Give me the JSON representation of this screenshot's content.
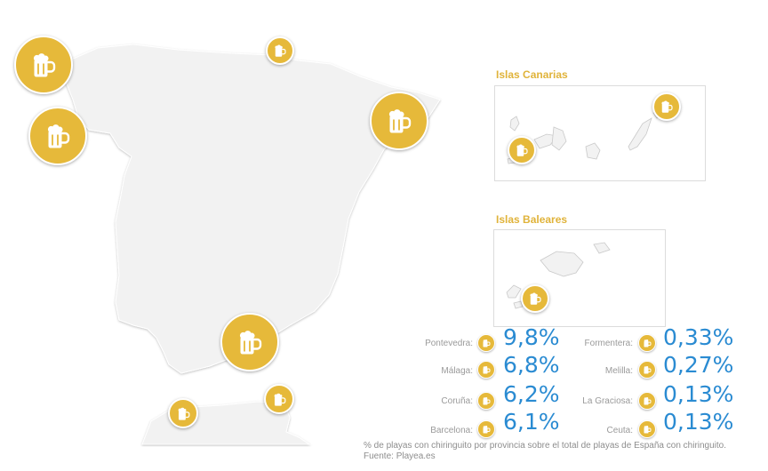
{
  "insets": {
    "canarias_title": "Islas Canarias",
    "baleares_title": "Islas Baleares"
  },
  "stats_left": [
    {
      "name": "Pontevedra:",
      "value": "9,8%"
    },
    {
      "name": "Málaga:",
      "value": "6,8%"
    },
    {
      "name": "Coruña:",
      "value": "6,2%"
    },
    {
      "name": "Barcelona:",
      "value": "6,1%"
    }
  ],
  "stats_right": [
    {
      "name": "Formentera:",
      "value": "0,33%"
    },
    {
      "name": "Melilla:",
      "value": "0,27%"
    },
    {
      "name": "La Graciosa:",
      "value": "0,13%"
    },
    {
      "name": "Ceuta:",
      "value": "0,13%"
    }
  ],
  "footnote": {
    "line1": "% de playas con chiringuito por provincia sobre el total de playas de España con chiringuito.",
    "line2": "Fuente: Playea.es"
  },
  "colors": {
    "marker": "#e6b93a",
    "land": "#f2f2f2",
    "value_text": "#2a8bd2",
    "inset_title": "#e0b33a"
  },
  "icons": {
    "marker_icon": "beer-mug-icon"
  }
}
